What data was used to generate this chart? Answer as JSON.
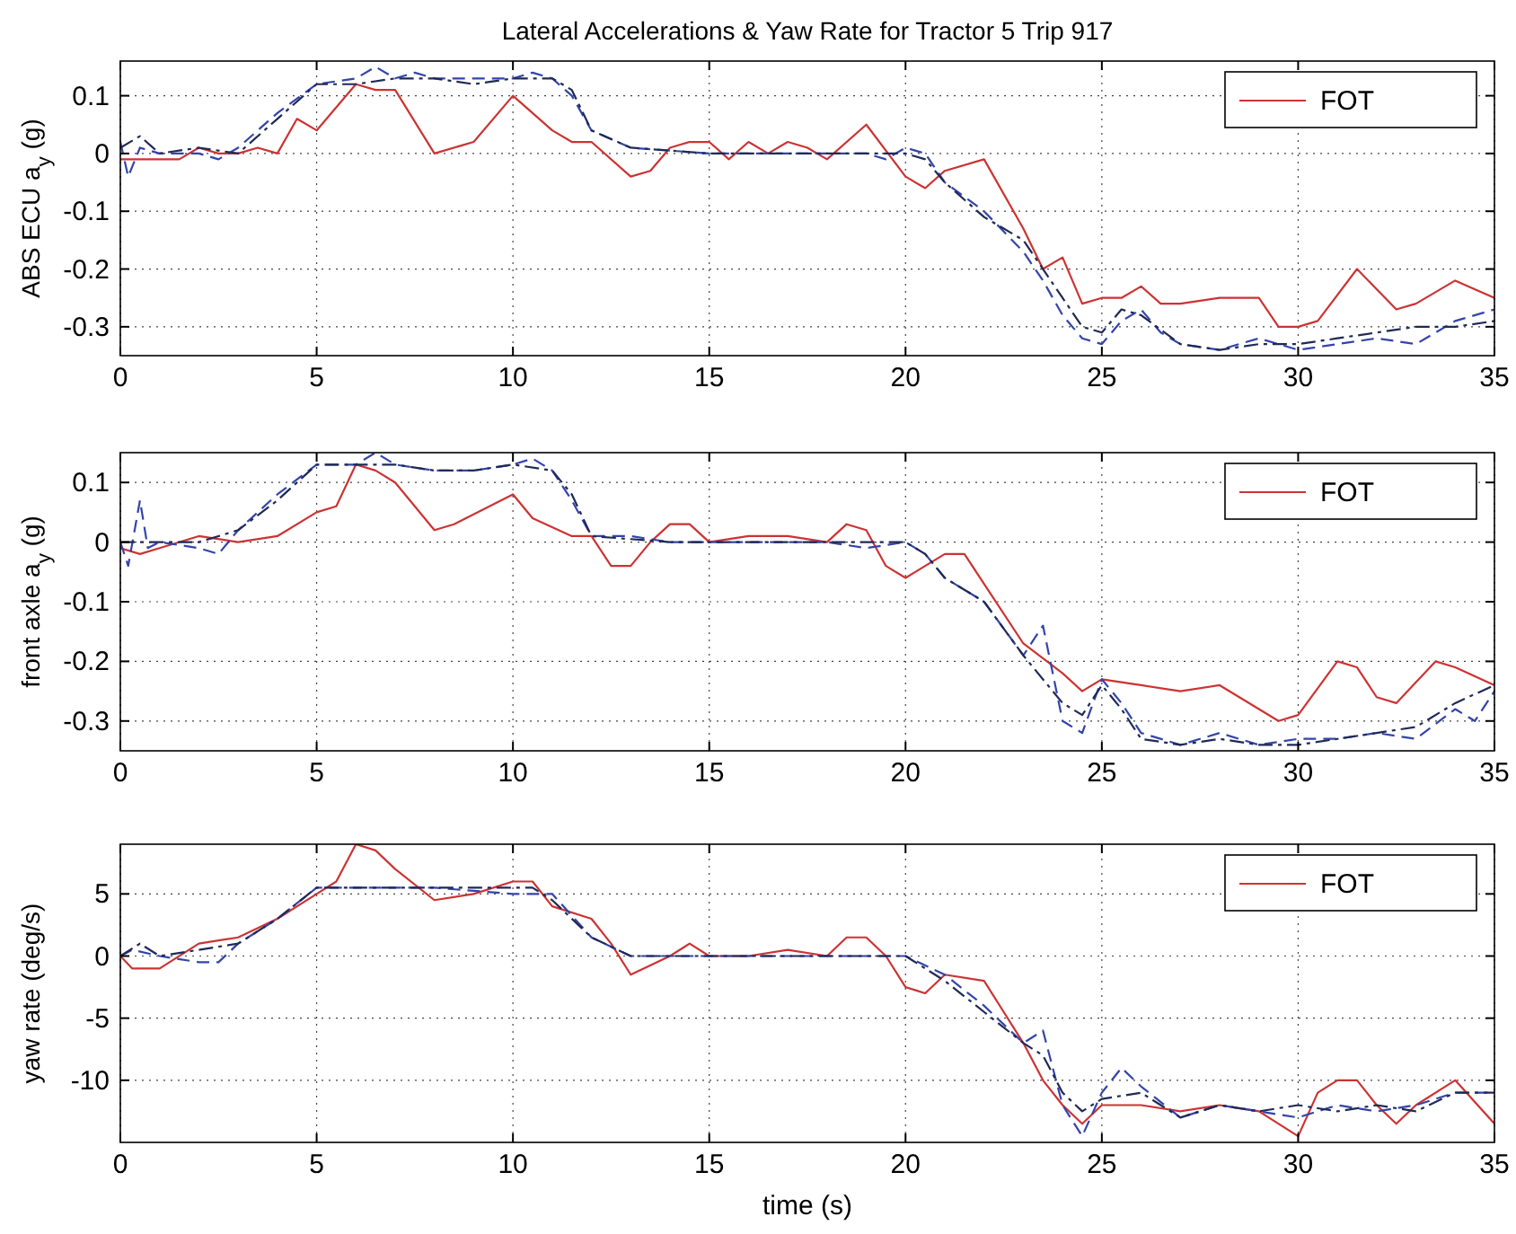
{
  "chart_data": [
    {
      "type": "line",
      "title": "Lateral Accelerations & Yaw Rate for Tractor 5 Trip 917",
      "ylabel": "ABS ECU a$_{y}$ (g)",
      "xlim": [
        0,
        35
      ],
      "xticks": [
        0,
        5,
        10,
        15,
        20,
        25,
        30,
        35
      ],
      "ylim": [
        -0.35,
        0.16
      ],
      "yticks": [
        -0.3,
        -0.2,
        -0.1,
        0,
        0.1
      ],
      "grid": true,
      "legend": "top right",
      "series": [
        {
          "name": "FOT",
          "color": "#cc3333",
          "line_style": "solid",
          "x": [
            0,
            1.5,
            2,
            2.5,
            3,
            3.5,
            4,
            4.5,
            5,
            6,
            6.5,
            7,
            8,
            9,
            10,
            11,
            11.5,
            12,
            13,
            13.5,
            14,
            14.5,
            15,
            15.5,
            16,
            16.5,
            17,
            17.5,
            18,
            19,
            20,
            20.5,
            21,
            22,
            23,
            23.5,
            24,
            24.5,
            25,
            25.5,
            26,
            26.5,
            27,
            28,
            29,
            29.5,
            30,
            30.5,
            31.5,
            32.5,
            33,
            34,
            35
          ],
          "values": [
            -0.01,
            -0.01,
            0.01,
            0,
            0,
            0.01,
            0,
            0.06,
            0.04,
            0.12,
            0.11,
            0.11,
            0,
            0.02,
            0.1,
            0.04,
            0.02,
            0.02,
            -0.04,
            -0.03,
            0.01,
            0.02,
            0.02,
            -0.01,
            0.02,
            0,
            0.02,
            0.01,
            -0.01,
            0.05,
            -0.04,
            -0.06,
            -0.03,
            -0.01,
            -0.13,
            -0.2,
            -0.18,
            -0.26,
            -0.25,
            -0.25,
            -0.23,
            -0.26,
            -0.26,
            -0.25,
            -0.25,
            -0.3,
            -0.3,
            -0.29,
            -0.2,
            -0.27,
            -0.26,
            -0.22,
            -0.25
          ]
        },
        {
          "color": "#3344aa",
          "line_style": "dashed",
          "x": [
            0,
            0.2,
            0.5,
            1,
            2,
            2.5,
            3,
            4,
            5,
            6,
            6.5,
            7,
            7.5,
            8,
            9,
            10,
            10.5,
            11,
            11.5,
            12,
            13,
            15,
            17,
            19,
            19.5,
            20,
            20.5,
            21,
            22,
            23,
            23.5,
            24,
            24.5,
            25,
            25.5,
            26,
            26.5,
            27,
            28,
            29,
            30,
            31,
            32,
            33,
            34,
            35
          ],
          "values": [
            0.02,
            -0.04,
            0.01,
            0,
            0,
            -0.01,
            0.01,
            0.07,
            0.12,
            0.13,
            0.15,
            0.13,
            0.14,
            0.13,
            0.13,
            0.13,
            0.14,
            0.13,
            0.1,
            0.04,
            0.01,
            0,
            0,
            0,
            -0.01,
            0.01,
            0,
            -0.05,
            -0.1,
            -0.17,
            -0.22,
            -0.28,
            -0.32,
            -0.33,
            -0.29,
            -0.27,
            -0.31,
            -0.33,
            -0.34,
            -0.32,
            -0.34,
            -0.33,
            -0.32,
            -0.33,
            -0.29,
            -0.27
          ]
        },
        {
          "color": "#1f2a55",
          "line_style": "dotted",
          "x": [
            0,
            0.5,
            1,
            2,
            3,
            4,
            5,
            6,
            7,
            8,
            9,
            10,
            11,
            11.5,
            12,
            13,
            15,
            17,
            19,
            20,
            20.5,
            21,
            22,
            23,
            24,
            24.5,
            25,
            25.5,
            26,
            27,
            28,
            29,
            30,
            31,
            32,
            33,
            34,
            35
          ],
          "values": [
            0.01,
            0.03,
            0,
            0.01,
            0,
            0.06,
            0.12,
            0.12,
            0.13,
            0.13,
            0.12,
            0.13,
            0.13,
            0.11,
            0.04,
            0.01,
            0,
            0,
            0,
            0,
            -0.01,
            -0.05,
            -0.11,
            -0.15,
            -0.25,
            -0.3,
            -0.31,
            -0.27,
            -0.28,
            -0.33,
            -0.34,
            -0.33,
            -0.33,
            -0.32,
            -0.31,
            -0.3,
            -0.3,
            -0.29
          ]
        }
      ]
    },
    {
      "type": "line",
      "ylabel": "front axle a$_{y}$ (g)",
      "xlim": [
        0,
        35
      ],
      "xticks": [
        0,
        5,
        10,
        15,
        20,
        25,
        30,
        35
      ],
      "ylim": [
        -0.35,
        0.15
      ],
      "yticks": [
        -0.3,
        -0.2,
        -0.1,
        0,
        0.1
      ],
      "grid": true,
      "legend": "top right",
      "series": [
        {
          "name": "FOT",
          "color": "#cc3333",
          "line_style": "solid",
          "x": [
            0,
            0.5,
            1,
            2,
            3,
            4,
            5,
            5.5,
            6,
            6.5,
            7,
            8,
            8.5,
            10,
            10.5,
            11.5,
            12,
            12.5,
            13,
            13.5,
            14,
            14.5,
            15,
            16,
            17,
            18,
            18.5,
            19,
            19.5,
            20,
            20.5,
            21,
            21.5,
            22,
            23,
            24,
            24.5,
            25,
            26,
            27,
            28,
            29,
            29.5,
            30,
            31,
            31.5,
            32,
            32.5,
            33.5,
            34,
            35
          ],
          "values": [
            -0.01,
            -0.02,
            -0.01,
            0.01,
            0,
            0.01,
            0.05,
            0.06,
            0.13,
            0.12,
            0.1,
            0.02,
            0.03,
            0.08,
            0.04,
            0.01,
            0.01,
            -0.04,
            -0.04,
            0,
            0.03,
            0.03,
            0,
            0.01,
            0.01,
            0,
            0.03,
            0.02,
            -0.04,
            -0.06,
            -0.04,
            -0.02,
            -0.02,
            -0.07,
            -0.17,
            -0.22,
            -0.25,
            -0.23,
            -0.24,
            -0.25,
            -0.24,
            -0.28,
            -0.3,
            -0.29,
            -0.2,
            -0.21,
            -0.26,
            -0.27,
            -0.2,
            -0.21,
            -0.24
          ]
        },
        {
          "color": "#3344aa",
          "line_style": "dashed",
          "x": [
            0,
            0.2,
            0.5,
            0.7,
            1,
            2,
            2.5,
            3,
            4,
            5,
            6,
            6.5,
            7,
            8,
            9,
            10,
            10.5,
            11,
            11.5,
            12,
            13,
            14,
            16,
            18,
            19,
            20,
            20.5,
            21,
            22,
            23,
            23.5,
            24,
            24.5,
            25,
            25.5,
            26,
            27,
            28,
            29,
            30,
            31,
            32,
            33,
            34,
            34.5,
            35
          ],
          "values": [
            0,
            -0.04,
            0.07,
            -0.01,
            0,
            -0.01,
            -0.02,
            0.02,
            0.08,
            0.13,
            0.13,
            0.15,
            0.13,
            0.12,
            0.12,
            0.13,
            0.14,
            0.12,
            0.07,
            0.01,
            0.01,
            0,
            0,
            0,
            -0.01,
            0,
            -0.02,
            -0.06,
            -0.1,
            -0.19,
            -0.14,
            -0.3,
            -0.32,
            -0.23,
            -0.27,
            -0.32,
            -0.34,
            -0.32,
            -0.34,
            -0.33,
            -0.33,
            -0.32,
            -0.33,
            -0.28,
            -0.3,
            -0.25
          ]
        },
        {
          "color": "#1f2a55",
          "line_style": "dotted",
          "x": [
            0,
            1,
            2,
            3,
            4,
            5,
            6,
            7,
            8,
            9,
            10,
            11,
            11.5,
            12,
            14,
            16,
            18,
            20,
            20.5,
            21,
            22,
            23,
            24,
            24.5,
            25,
            25.5,
            26,
            27,
            28,
            29,
            30,
            31,
            32,
            33,
            34,
            35
          ],
          "values": [
            0,
            0,
            0,
            0.02,
            0.07,
            0.13,
            0.13,
            0.13,
            0.12,
            0.12,
            0.13,
            0.12,
            0.08,
            0.01,
            0,
            0,
            0,
            0,
            -0.02,
            -0.06,
            -0.1,
            -0.19,
            -0.27,
            -0.29,
            -0.24,
            -0.28,
            -0.33,
            -0.34,
            -0.33,
            -0.34,
            -0.34,
            -0.33,
            -0.32,
            -0.31,
            -0.27,
            -0.24
          ]
        }
      ]
    },
    {
      "type": "line",
      "ylabel": "yaw rate (deg/s)",
      "xlabel": "time (s)",
      "xlim": [
        0,
        35
      ],
      "xticks": [
        0,
        5,
        10,
        15,
        20,
        25,
        30,
        35
      ],
      "ylim": [
        -15,
        9
      ],
      "yticks": [
        -10,
        -5,
        0,
        5
      ],
      "grid": true,
      "legend": "top right",
      "series": [
        {
          "name": "FOT",
          "color": "#cc3333",
          "line_style": "solid",
          "x": [
            0,
            0.3,
            1,
            2,
            3,
            4,
            5,
            5.5,
            6,
            6.5,
            7,
            8,
            9,
            10,
            10.5,
            11,
            12,
            12.5,
            13,
            14,
            14.5,
            15,
            16,
            17,
            18,
            18.5,
            19,
            19.5,
            20,
            20.5,
            21,
            22,
            22.5,
            23,
            23.5,
            24,
            24.5,
            25,
            26,
            27,
            28,
            29,
            30,
            30.5,
            31,
            31.5,
            32,
            32.5,
            33,
            34,
            35
          ],
          "values": [
            0,
            -1,
            -1,
            1,
            1.5,
            3,
            5,
            6,
            9,
            8.5,
            7,
            4.5,
            5,
            6,
            6,
            4,
            3,
            1,
            -1.5,
            0,
            1,
            0,
            0,
            0.5,
            0,
            1.5,
            1.5,
            0,
            -2.5,
            -3,
            -1.5,
            -2,
            -4.5,
            -7,
            -10,
            -12,
            -13.5,
            -12,
            -12,
            -12.5,
            -12,
            -12.5,
            -14.5,
            -11,
            -10,
            -10,
            -12,
            -13.5,
            -12,
            -10,
            -13.5
          ]
        },
        {
          "color": "#3344aa",
          "line_style": "dashed",
          "x": [
            0,
            0.3,
            1,
            2,
            2.5,
            3,
            4,
            5,
            5.5,
            6,
            8,
            10,
            11,
            12,
            13,
            15,
            17,
            19,
            20,
            21,
            22,
            23,
            23.5,
            24,
            24.5,
            25,
            25.5,
            26,
            27,
            28,
            29,
            30,
            31,
            32,
            33,
            34,
            35
          ],
          "values": [
            0,
            0.5,
            0,
            -0.5,
            -0.5,
            1,
            3,
            5.5,
            5.5,
            5.5,
            5.5,
            5,
            5,
            1.5,
            0,
            0,
            0,
            0,
            0,
            -1.5,
            -4,
            -7,
            -6,
            -12,
            -14.5,
            -11,
            -9,
            -10.5,
            -13,
            -12,
            -12.5,
            -13,
            -12,
            -12.5,
            -12,
            -11,
            -11
          ]
        },
        {
          "color": "#1f2a55",
          "line_style": "dotted",
          "x": [
            0,
            0.5,
            1,
            2,
            3,
            4,
            5,
            6,
            8,
            10,
            10.5,
            11,
            12,
            13,
            15,
            17,
            19,
            20,
            20.5,
            21,
            22,
            23,
            23.5,
            24,
            24.5,
            25,
            26,
            27,
            28,
            29,
            30,
            31,
            32,
            33,
            34,
            35
          ],
          "values": [
            0,
            1,
            0,
            0.5,
            1,
            3,
            5.5,
            5.5,
            5.5,
            5.5,
            5.5,
            4.5,
            1.5,
            0,
            0,
            0,
            0,
            0,
            -1,
            -2,
            -4.5,
            -7,
            -8,
            -11,
            -12.5,
            -11.5,
            -11,
            -13,
            -12,
            -12.5,
            -12,
            -12.5,
            -12,
            -12.5,
            -11,
            -11
          ]
        }
      ]
    }
  ]
}
